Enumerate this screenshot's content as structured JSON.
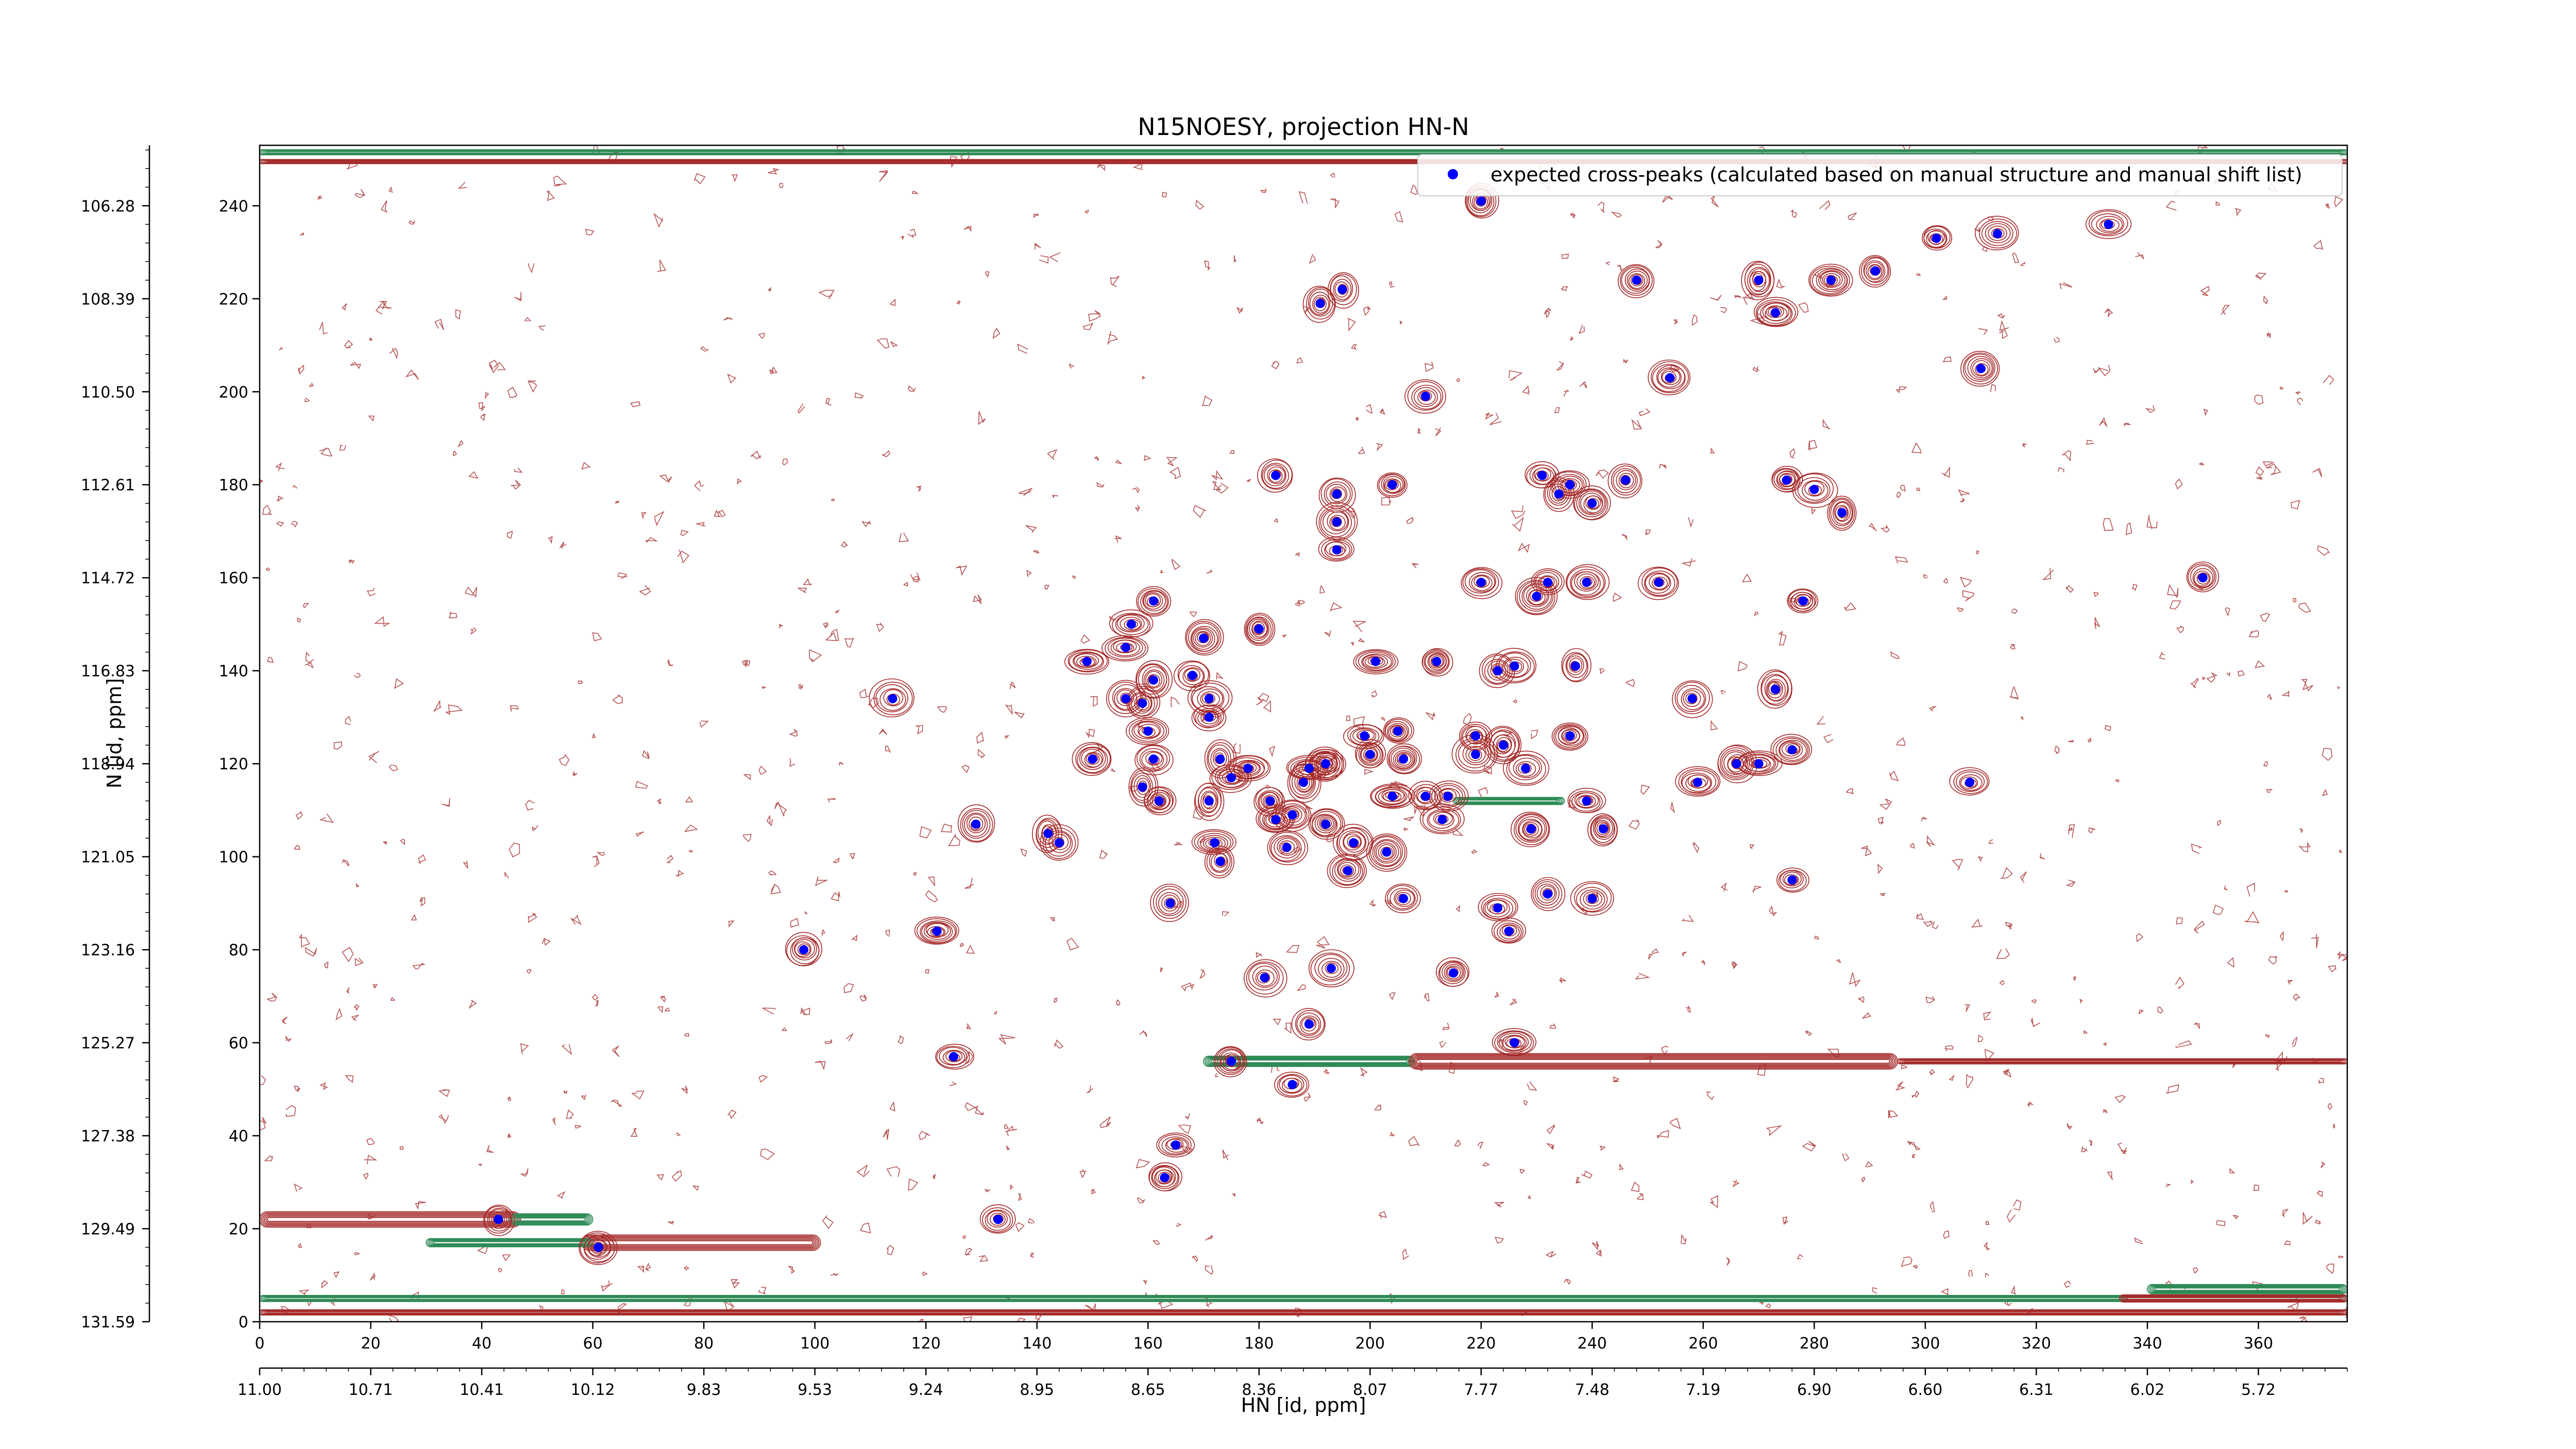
{
  "chart_data": {
    "type": "scatter",
    "title": "N15NOESY, projection HN-N",
    "xlabel": "HN [id, ppm]",
    "ylabel": "N [id, ppm]",
    "xlim": [
      0,
      376
    ],
    "ylim": [
      0,
      253
    ],
    "grid": false,
    "legend_position": "top-right",
    "x_ticks": [
      0,
      20,
      40,
      60,
      80,
      100,
      120,
      140,
      160,
      180,
      200,
      220,
      240,
      260,
      280,
      300,
      320,
      340,
      360
    ],
    "x_ppm_labels": [
      "11.00",
      "10.71",
      "10.41",
      "10.12",
      "9.83",
      "9.53",
      "9.24",
      "8.95",
      "8.65",
      "8.36",
      "8.07",
      "7.77",
      "7.48",
      "7.19",
      "6.90",
      "6.60",
      "6.31",
      "6.02",
      "5.72"
    ],
    "y_ticks": [
      0,
      20,
      40,
      60,
      80,
      100,
      120,
      140,
      160,
      180,
      200,
      220,
      240
    ],
    "y_ppm_labels": [
      "131.59",
      "129.49",
      "127.38",
      "125.27",
      "123.16",
      "121.05",
      "118.94",
      "116.83",
      "114.72",
      "112.61",
      "110.50",
      "108.39",
      "106.28"
    ],
    "series": [
      {
        "name": "expected cross-peaks (calculated based on manual structure and manual shift list)",
        "color": "#0000ff",
        "points": [
          [
            220,
            241
          ],
          [
            248,
            224
          ],
          [
            270,
            224
          ],
          [
            283,
            224
          ],
          [
            291,
            226
          ],
          [
            302,
            233
          ],
          [
            313,
            234
          ],
          [
            333,
            236
          ],
          [
            195,
            222
          ],
          [
            191,
            219
          ],
          [
            273,
            217
          ],
          [
            310,
            205
          ],
          [
            254,
            203
          ],
          [
            210,
            199
          ],
          [
            183,
            182
          ],
          [
            194,
            178
          ],
          [
            204,
            180
          ],
          [
            231,
            182
          ],
          [
            234,
            178
          ],
          [
            236,
            180
          ],
          [
            240,
            176
          ],
          [
            246,
            181
          ],
          [
            275,
            181
          ],
          [
            280,
            179
          ],
          [
            285,
            174
          ],
          [
            194,
            172
          ],
          [
            194,
            166
          ],
          [
            220,
            159
          ],
          [
            232,
            159
          ],
          [
            239,
            159
          ],
          [
            252,
            159
          ],
          [
            230,
            156
          ],
          [
            278,
            155
          ],
          [
            350,
            160
          ],
          [
            161,
            155
          ],
          [
            157,
            150
          ],
          [
            180,
            149
          ],
          [
            170,
            147
          ],
          [
            156,
            145
          ],
          [
            149,
            142
          ],
          [
            201,
            142
          ],
          [
            212,
            142
          ],
          [
            223,
            140
          ],
          [
            226,
            141
          ],
          [
            237,
            141
          ],
          [
            168,
            139
          ],
          [
            161,
            138
          ],
          [
            156,
            134
          ],
          [
            159,
            133
          ],
          [
            171,
            134
          ],
          [
            171,
            130
          ],
          [
            114,
            134
          ],
          [
            258,
            134
          ],
          [
            273,
            136
          ],
          [
            160,
            127
          ],
          [
            199,
            126
          ],
          [
            205,
            127
          ],
          [
            219,
            126
          ],
          [
            224,
            124
          ],
          [
            236,
            126
          ],
          [
            276,
            123
          ],
          [
            150,
            121
          ],
          [
            161,
            121
          ],
          [
            173,
            121
          ],
          [
            178,
            119
          ],
          [
            189,
            119
          ],
          [
            192,
            120
          ],
          [
            200,
            122
          ],
          [
            206,
            121
          ],
          [
            219,
            122
          ],
          [
            228,
            119
          ],
          [
            259,
            116
          ],
          [
            266,
            120
          ],
          [
            270,
            120
          ],
          [
            308,
            116
          ],
          [
            159,
            115
          ],
          [
            162,
            112
          ],
          [
            171,
            112
          ],
          [
            175,
            117
          ],
          [
            182,
            112
          ],
          [
            188,
            116
          ],
          [
            192,
            120
          ],
          [
            204,
            113
          ],
          [
            210,
            113
          ],
          [
            214,
            113
          ],
          [
            239,
            112
          ],
          [
            142,
            105
          ],
          [
            144,
            103
          ],
          [
            172,
            103
          ],
          [
            183,
            108
          ],
          [
            186,
            109
          ],
          [
            192,
            107
          ],
          [
            197,
            103
          ],
          [
            203,
            101
          ],
          [
            213,
            108
          ],
          [
            229,
            106
          ],
          [
            242,
            106
          ],
          [
            129,
            107
          ],
          [
            173,
            99
          ],
          [
            164,
            90
          ],
          [
            185,
            102
          ],
          [
            196,
            97
          ],
          [
            206,
            91
          ],
          [
            223,
            89
          ],
          [
            225,
            84
          ],
          [
            232,
            92
          ],
          [
            240,
            91
          ],
          [
            276,
            95
          ],
          [
            122,
            84
          ],
          [
            98,
            80
          ],
          [
            181,
            74
          ],
          [
            193,
            76
          ],
          [
            215,
            75
          ],
          [
            189,
            64
          ],
          [
            226,
            60
          ],
          [
            175,
            56
          ],
          [
            186,
            51
          ],
          [
            125,
            57
          ],
          [
            165,
            38
          ],
          [
            163,
            31
          ],
          [
            133,
            22
          ],
          [
            43,
            22
          ],
          [
            61,
            16
          ]
        ]
      }
    ]
  }
}
